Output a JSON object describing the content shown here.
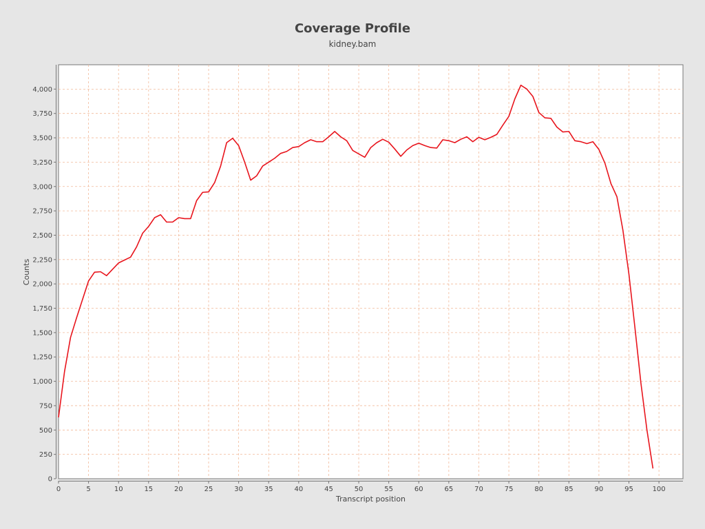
{
  "chart_data": {
    "type": "line",
    "title": "Coverage Profile",
    "subtitle": "kidney.bam",
    "xlabel": "Transcript position",
    "ylabel": "Counts",
    "xlim": [
      0,
      104
    ],
    "ylim": [
      0,
      4250
    ],
    "x_ticks": [
      0,
      5,
      10,
      15,
      20,
      25,
      30,
      35,
      40,
      45,
      50,
      55,
      60,
      65,
      70,
      75,
      80,
      85,
      90,
      95,
      100
    ],
    "x_tick_labels": [
      "0",
      "5",
      "10",
      "15",
      "20",
      "25",
      "30",
      "35",
      "40",
      "45",
      "50",
      "55",
      "60",
      "65",
      "70",
      "75",
      "80",
      "85",
      "90",
      "95",
      "100"
    ],
    "y_ticks": [
      0,
      250,
      500,
      750,
      1000,
      1250,
      1500,
      1750,
      2000,
      2250,
      2500,
      2750,
      3000,
      3250,
      3500,
      3750,
      4000
    ],
    "y_tick_labels": [
      "0",
      "250",
      "500",
      "750",
      "1,000",
      "1,250",
      "1,500",
      "1,750",
      "2,000",
      "2,250",
      "2,500",
      "2,750",
      "3,000",
      "3,250",
      "3,500",
      "3,750",
      "4,000"
    ],
    "grid": true,
    "colors": {
      "line": "#e8141c",
      "grid": "#f2b999",
      "plot_background": "#ffffff",
      "page_background": "#e6e6e6",
      "text": "#444444"
    },
    "series": [
      {
        "x": [
          0,
          1,
          2,
          3,
          4,
          5,
          6,
          7,
          8,
          9,
          10,
          11,
          12,
          13,
          14,
          15,
          16,
          17,
          18,
          19,
          20,
          21,
          22,
          23,
          24,
          25,
          26,
          27,
          28,
          29,
          30,
          31,
          32,
          33,
          34,
          35,
          36,
          37,
          38,
          39,
          40,
          41,
          42,
          43,
          44,
          45,
          46,
          47,
          48,
          49,
          50,
          51,
          52,
          53,
          54,
          55,
          56,
          57,
          58,
          59,
          60,
          61,
          62,
          63,
          64,
          65,
          66,
          67,
          68,
          69,
          70,
          71,
          72,
          73,
          74,
          75,
          76,
          77,
          78,
          79,
          80,
          81,
          82,
          83,
          84,
          85,
          86,
          87,
          88,
          89,
          90,
          91,
          92,
          93,
          94,
          95,
          96,
          97,
          98,
          99
        ],
        "values": [
          630,
          1100,
          1450,
          1650,
          1840,
          2030,
          2120,
          2125,
          2085,
          2150,
          2215,
          2245,
          2275,
          2380,
          2520,
          2590,
          2680,
          2710,
          2635,
          2635,
          2680,
          2670,
          2670,
          2855,
          2940,
          2945,
          3040,
          3210,
          3450,
          3495,
          3420,
          3250,
          3065,
          3110,
          3210,
          3250,
          3290,
          3340,
          3360,
          3400,
          3410,
          3450,
          3480,
          3460,
          3460,
          3510,
          3565,
          3510,
          3470,
          3370,
          3335,
          3300,
          3400,
          3450,
          3485,
          3455,
          3385,
          3310,
          3375,
          3420,
          3445,
          3420,
          3400,
          3395,
          3480,
          3470,
          3450,
          3485,
          3510,
          3460,
          3505,
          3480,
          3505,
          3535,
          3630,
          3720,
          3900,
          4040,
          4000,
          3925,
          3760,
          3705,
          3700,
          3610,
          3560,
          3565,
          3470,
          3460,
          3440,
          3460,
          3380,
          3240,
          3030,
          2895,
          2550,
          2100,
          1550,
          980,
          500,
          105
        ]
      }
    ]
  }
}
